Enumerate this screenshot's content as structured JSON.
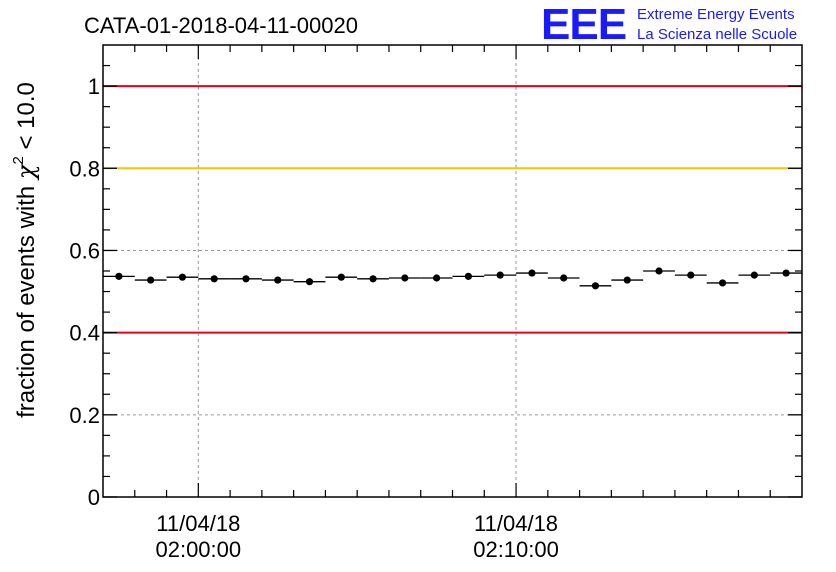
{
  "chart_data": {
    "type": "scatter",
    "title": "CATA-01-2018-04-11-00020",
    "ylabel": "fraction of events with χ² < 10.0",
    "ylabel_parts": {
      "prefix": "fraction of events with ",
      "symbol": "χ",
      "exponent": "2",
      "suffix": " < 10.0"
    },
    "xlabel": "",
    "ylim": [
      0,
      1.1
    ],
    "yticks": [
      0,
      0.2,
      0.4,
      0.6,
      0.8,
      1
    ],
    "ytick_labels": [
      "0",
      "0.2",
      "0.4",
      "0.6",
      "0.8",
      "1"
    ],
    "x_unit": "minutes after 01:53:00 on 11/04/18",
    "xlim": [
      0,
      22
    ],
    "xticks": [
      {
        "x": 3,
        "date": "11/04/18",
        "time": "02:00:00"
      },
      {
        "x": 13,
        "date": "11/04/18",
        "time": "02:10:00"
      }
    ],
    "grid": true,
    "reference_lines": [
      {
        "y": 1.0,
        "color": "#e8001c"
      },
      {
        "y": 0.8,
        "color": "#ffc200"
      },
      {
        "y": 0.4,
        "color": "#e8001c"
      }
    ],
    "series": [
      {
        "x_bin_width": 1.0,
        "x": [
          0.5,
          1.5,
          2.5,
          3.5,
          4.5,
          5.5,
          6.5,
          7.5,
          8.5,
          9.5,
          10.5,
          11.5,
          12.5,
          13.5,
          14.5,
          15.5,
          16.5,
          17.5,
          18.5,
          19.5,
          20.5,
          21.5
        ],
        "y": [
          0.537,
          0.528,
          0.535,
          0.531,
          0.531,
          0.528,
          0.524,
          0.535,
          0.531,
          0.533,
          0.533,
          0.537,
          0.54,
          0.545,
          0.533,
          0.514,
          0.528,
          0.55,
          0.54,
          0.521,
          0.54,
          0.545
        ],
        "y_err": 0.008
      }
    ]
  },
  "logo": {
    "mark": "EEE",
    "line1": "Extreme Energy Events",
    "line2": "La Scienza nelle Scuole",
    "color": "#1a1aff"
  }
}
